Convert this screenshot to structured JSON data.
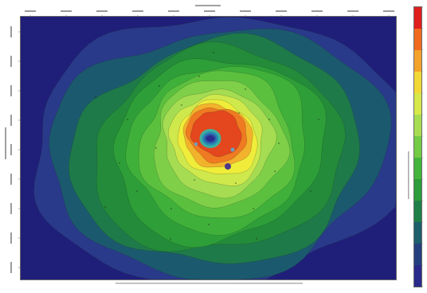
{
  "chart_data": {
    "type": "heatmap",
    "subtype": "filled-contour-map",
    "title": "",
    "xlabel": "",
    "ylabel": "",
    "grid": false,
    "legend": "colorbar-right",
    "colors": {
      "background": "#1f1f7a",
      "low": "#2a2a86",
      "mid": "#2e9e3a",
      "high_green": "#9ed85a",
      "yellow": "#f2ec3a",
      "orange": "#f08a24",
      "peak": "#e23b20",
      "core": "#2b2b8e"
    },
    "levels": [
      {
        "level": 1,
        "color": "#2a3a8a"
      },
      {
        "level": 2,
        "color": "#1b5a6e"
      },
      {
        "level": 3,
        "color": "#1f7a4a"
      },
      {
        "level": 4,
        "color": "#238b3a"
      },
      {
        "level": 5,
        "color": "#2e9e38"
      },
      {
        "level": 6,
        "color": "#3fb03a"
      },
      {
        "level": 7,
        "color": "#5cc03f"
      },
      {
        "level": 8,
        "color": "#7fcf48"
      },
      {
        "level": 9,
        "color": "#a5dc52"
      },
      {
        "level": 10,
        "color": "#cfe84c"
      },
      {
        "level": 11,
        "color": "#f0ec3a"
      },
      {
        "level": 12,
        "color": "#f3b22c"
      },
      {
        "level": 13,
        "color": "#ef7a22"
      },
      {
        "level": 14,
        "color": "#e4461e"
      }
    ],
    "colorbar": {
      "colors": [
        "#e11e1e",
        "#f06a1e",
        "#f3a22a",
        "#f2d836",
        "#d6e84a",
        "#a8dc52",
        "#74cb46",
        "#44b43c",
        "#2d9c3a",
        "#1f7f48",
        "#1e5f6c",
        "#24407e",
        "#2a2a8a"
      ]
    }
  }
}
